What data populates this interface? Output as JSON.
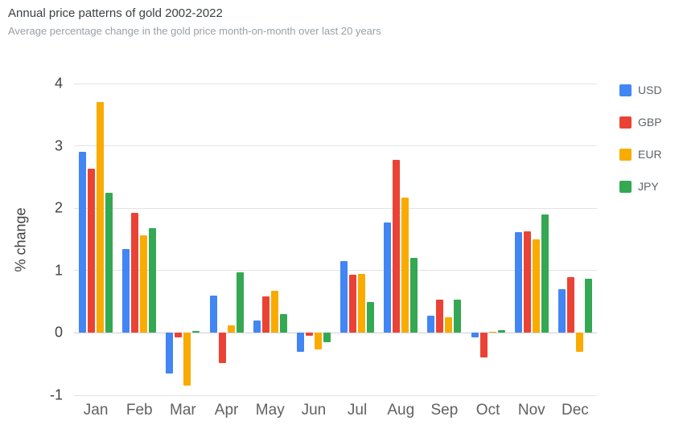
{
  "header": {
    "title": "Annual price patterns of gold 2002-2022",
    "subtitle": "Average percentage change in the gold price month-on-month over last 20 years"
  },
  "chart_data": {
    "type": "bar",
    "title": "Annual price patterns of gold 2002-2022",
    "subtitle": "Average percentage change in the gold price month-on-month over last 20 years",
    "categories": [
      "Jan",
      "Feb",
      "Mar",
      "Apr",
      "May",
      "Jun",
      "Jul",
      "Aug",
      "Sep",
      "Oct",
      "Nov",
      "Dec"
    ],
    "series": [
      {
        "name": "USD",
        "color": "#4285f4",
        "values": [
          2.9,
          1.35,
          -0.65,
          0.6,
          0.2,
          -0.3,
          1.15,
          1.77,
          0.28,
          -0.07,
          1.62,
          0.7
        ]
      },
      {
        "name": "GBP",
        "color": "#ea4335",
        "values": [
          2.63,
          1.92,
          -0.07,
          -0.48,
          0.58,
          -0.05,
          0.93,
          2.78,
          0.53,
          -0.4,
          1.63,
          0.9
        ]
      },
      {
        "name": "EUR",
        "color": "#f9ab00",
        "values": [
          3.7,
          1.57,
          -0.85,
          0.12,
          0.67,
          -0.27,
          0.95,
          2.17,
          0.25,
          0.02,
          1.5,
          -0.3
        ]
      },
      {
        "name": "JPY",
        "color": "#34a853",
        "values": [
          2.25,
          1.68,
          0.03,
          0.97,
          0.3,
          -0.15,
          0.5,
          1.2,
          0.53,
          0.05,
          1.9,
          0.87
        ]
      }
    ],
    "xlabel": "",
    "ylabel": "% change",
    "ylim": [
      -1,
      4
    ],
    "yticks": [
      4,
      3,
      2,
      1,
      0,
      -1
    ],
    "grid": true,
    "legend_position": "right"
  }
}
